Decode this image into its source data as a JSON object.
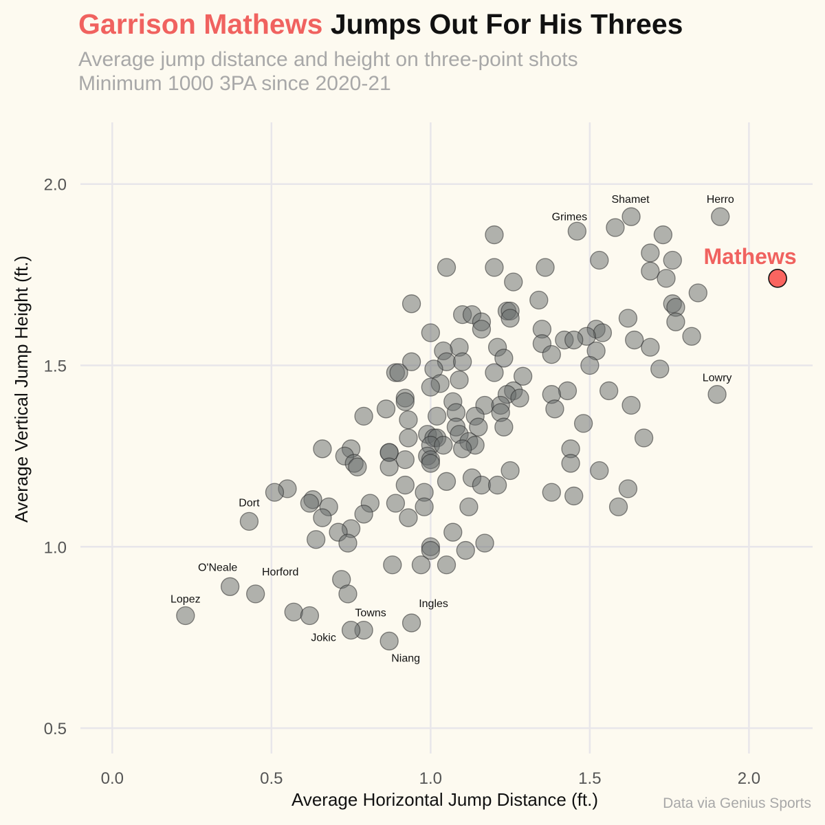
{
  "title": {
    "highlight": "Garrison Mathews",
    "rest": " Jumps Out For His Threes"
  },
  "subtitle": [
    "Average jump distance and height on three-point shots",
    "Minimum 1000 3PA since 2020-21"
  ],
  "caption": "Data via Genius Sports",
  "colors": {
    "background": "#fdfaf0",
    "highlight": "#f0625f",
    "point": "#696e6e",
    "grid": "#e8e6ea"
  },
  "chart_data": {
    "type": "scatter",
    "xlabel": "Average Horizontal Jump Distance (ft.)",
    "ylabel": "Average Vertical Jump Height (ft.)",
    "xlim": [
      -0.1,
      2.2
    ],
    "ylim": [
      0.43,
      2.17
    ],
    "xticks": [
      0.0,
      0.5,
      1.0,
      1.5,
      2.0
    ],
    "xtick_labels": [
      "0.0",
      "0.5",
      "1.0",
      "1.5",
      "2.0"
    ],
    "yticks": [
      0.5,
      1.0,
      1.5,
      2.0
    ],
    "ytick_labels": [
      "0.5",
      "1.0",
      "1.5",
      "2.0"
    ],
    "grid": true,
    "highlight": {
      "label": "Mathews",
      "x": 2.09,
      "y": 1.74
    },
    "labeled_points": [
      {
        "label": "Herro",
        "x": 1.91,
        "y": 1.91
      },
      {
        "label": "Shamet",
        "x": 1.63,
        "y": 1.91
      },
      {
        "label": "Grimes",
        "x": 1.46,
        "y": 1.87
      },
      {
        "label": "Lowry",
        "x": 1.9,
        "y": 1.42
      },
      {
        "label": "Dort",
        "x": 0.43,
        "y": 1.07
      },
      {
        "label": "O'Neale",
        "x": 0.37,
        "y": 0.89
      },
      {
        "label": "Horford",
        "x": 0.45,
        "y": 0.87
      },
      {
        "label": "Lopez",
        "x": 0.23,
        "y": 0.81
      },
      {
        "label": "Towns",
        "x": 0.79,
        "y": 0.77
      },
      {
        "label": "Ingles",
        "x": 0.94,
        "y": 0.79
      },
      {
        "label": "Jokic",
        "x": 0.75,
        "y": 0.77
      },
      {
        "label": "Niang",
        "x": 0.87,
        "y": 0.74
      }
    ],
    "points": [
      [
        1.2,
        1.86
      ],
      [
        1.58,
        1.88
      ],
      [
        1.73,
        1.86
      ],
      [
        1.53,
        1.79
      ],
      [
        1.69,
        1.81
      ],
      [
        1.76,
        1.79
      ],
      [
        1.05,
        1.77
      ],
      [
        1.2,
        1.77
      ],
      [
        1.36,
        1.77
      ],
      [
        1.69,
        1.76
      ],
      [
        1.74,
        1.74
      ],
      [
        1.26,
        1.73
      ],
      [
        1.84,
        1.7
      ],
      [
        1.34,
        1.68
      ],
      [
        0.94,
        1.67
      ],
      [
        1.76,
        1.67
      ],
      [
        1.77,
        1.66
      ],
      [
        1.24,
        1.65
      ],
      [
        1.25,
        1.65
      ],
      [
        1.1,
        1.64
      ],
      [
        1.13,
        1.64
      ],
      [
        1.25,
        1.63
      ],
      [
        1.62,
        1.63
      ],
      [
        1.16,
        1.62
      ],
      [
        1.77,
        1.62
      ],
      [
        1.16,
        1.6
      ],
      [
        1.35,
        1.6
      ],
      [
        1.52,
        1.6
      ],
      [
        1.0,
        1.59
      ],
      [
        1.54,
        1.59
      ],
      [
        1.82,
        1.58
      ],
      [
        1.49,
        1.58
      ],
      [
        1.42,
        1.57
      ],
      [
        1.64,
        1.57
      ],
      [
        1.45,
        1.57
      ],
      [
        1.35,
        1.56
      ],
      [
        1.09,
        1.55
      ],
      [
        1.21,
        1.55
      ],
      [
        1.69,
        1.55
      ],
      [
        1.04,
        1.54
      ],
      [
        1.52,
        1.54
      ],
      [
        1.38,
        1.53
      ],
      [
        1.23,
        1.52
      ],
      [
        0.94,
        1.51
      ],
      [
        1.05,
        1.51
      ],
      [
        1.1,
        1.51
      ],
      [
        1.5,
        1.5
      ],
      [
        1.01,
        1.49
      ],
      [
        1.72,
        1.49
      ],
      [
        0.89,
        1.48
      ],
      [
        1.2,
        1.48
      ],
      [
        0.9,
        1.48
      ],
      [
        1.29,
        1.47
      ],
      [
        1.09,
        1.46
      ],
      [
        1.03,
        1.45
      ],
      [
        1.0,
        1.44
      ],
      [
        1.56,
        1.43
      ],
      [
        1.43,
        1.43
      ],
      [
        1.26,
        1.43
      ],
      [
        1.38,
        1.42
      ],
      [
        1.24,
        1.42
      ],
      [
        1.28,
        1.41
      ],
      [
        0.92,
        1.41
      ],
      [
        0.92,
        1.4
      ],
      [
        1.07,
        1.4
      ],
      [
        1.17,
        1.39
      ],
      [
        1.22,
        1.39
      ],
      [
        1.63,
        1.39
      ],
      [
        1.39,
        1.38
      ],
      [
        0.86,
        1.38
      ],
      [
        1.08,
        1.37
      ],
      [
        1.22,
        1.37
      ],
      [
        0.79,
        1.36
      ],
      [
        1.02,
        1.36
      ],
      [
        1.14,
        1.36
      ],
      [
        0.93,
        1.35
      ],
      [
        1.48,
        1.34
      ],
      [
        1.08,
        1.33
      ],
      [
        1.15,
        1.33
      ],
      [
        1.23,
        1.33
      ],
      [
        1.09,
        1.31
      ],
      [
        0.99,
        1.31
      ],
      [
        0.93,
        1.3
      ],
      [
        1.01,
        1.3
      ],
      [
        1.02,
        1.3
      ],
      [
        1.67,
        1.3
      ],
      [
        1.12,
        1.29
      ],
      [
        1.0,
        1.28
      ],
      [
        1.04,
        1.28
      ],
      [
        1.14,
        1.28
      ],
      [
        1.44,
        1.27
      ],
      [
        0.66,
        1.27
      ],
      [
        0.75,
        1.27
      ],
      [
        1.1,
        1.27
      ],
      [
        0.87,
        1.26
      ],
      [
        0.87,
        1.26
      ],
      [
        0.73,
        1.25
      ],
      [
        0.99,
        1.25
      ],
      [
        1.0,
        1.24
      ],
      [
        0.92,
        1.24
      ],
      [
        1.0,
        1.23
      ],
      [
        0.76,
        1.23
      ],
      [
        1.44,
        1.23
      ],
      [
        0.77,
        1.22
      ],
      [
        0.87,
        1.22
      ],
      [
        1.25,
        1.21
      ],
      [
        1.53,
        1.21
      ],
      [
        1.13,
        1.19
      ],
      [
        1.05,
        1.18
      ],
      [
        0.92,
        1.17
      ],
      [
        1.16,
        1.17
      ],
      [
        1.21,
        1.17
      ],
      [
        1.62,
        1.16
      ],
      [
        0.55,
        1.16
      ],
      [
        0.51,
        1.15
      ],
      [
        0.98,
        1.15
      ],
      [
        1.38,
        1.15
      ],
      [
        1.45,
        1.14
      ],
      [
        0.63,
        1.13
      ],
      [
        0.62,
        1.12
      ],
      [
        0.81,
        1.12
      ],
      [
        0.89,
        1.12
      ],
      [
        0.68,
        1.11
      ],
      [
        0.98,
        1.11
      ],
      [
        1.12,
        1.11
      ],
      [
        1.59,
        1.11
      ],
      [
        0.79,
        1.09
      ],
      [
        0.66,
        1.08
      ],
      [
        0.93,
        1.08
      ],
      [
        0.75,
        1.05
      ],
      [
        0.71,
        1.04
      ],
      [
        1.07,
        1.04
      ],
      [
        0.64,
        1.02
      ],
      [
        0.74,
        1.01
      ],
      [
        1.17,
        1.01
      ],
      [
        1.0,
        1.0
      ],
      [
        1.0,
        0.99
      ],
      [
        1.11,
        0.99
      ],
      [
        0.88,
        0.95
      ],
      [
        0.97,
        0.95
      ],
      [
        1.05,
        0.95
      ],
      [
        0.72,
        0.91
      ],
      [
        0.74,
        0.87
      ],
      [
        0.57,
        0.82
      ],
      [
        0.62,
        0.81
      ]
    ]
  }
}
